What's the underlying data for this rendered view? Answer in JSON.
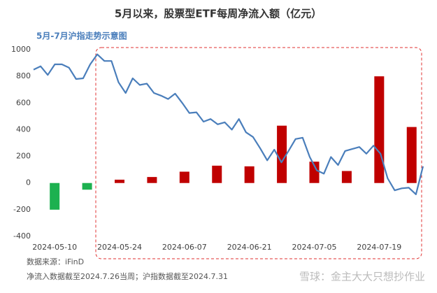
{
  "chart_data": {
    "type": "bar",
    "title": "5月以来，股票型ETF每周净流入额（亿元）",
    "subtitle": "5月-7月沪指走势示意图",
    "categories": [
      "2024-05-10",
      null,
      "2024-05-24",
      null,
      "2024-06-07",
      null,
      "2024-06-21",
      null,
      "2024-07-05",
      null,
      "2024-07-19",
      null
    ],
    "values": [
      -200,
      -50,
      25,
      45,
      85,
      130,
      125,
      430,
      160,
      90,
      800,
      420
    ],
    "colors": [
      "#1db150",
      "#1db150",
      "#c00000",
      "#c00000",
      "#c00000",
      "#c00000",
      "#c00000",
      "#c00000",
      "#c00000",
      "#c00000",
      "#c00000",
      "#c00000"
    ],
    "line": {
      "color": "#4a7ebb",
      "values": [
        850,
        875,
        810,
        890,
        890,
        865,
        780,
        785,
        890,
        965,
        915,
        915,
        755,
        675,
        785,
        735,
        745,
        675,
        655,
        630,
        670,
        600,
        525,
        530,
        460,
        480,
        440,
        455,
        400,
        480,
        380,
        345,
        260,
        170,
        250,
        155,
        240,
        330,
        340,
        195,
        95,
        70,
        195,
        135,
        240,
        255,
        270,
        220,
        280,
        220,
        35,
        -55,
        -40,
        -35,
        -85,
        125
      ]
    },
    "ylim": [
      -400,
      1000
    ],
    "yticks": [
      -400,
      -200,
      0,
      200,
      400,
      600,
      800,
      1000
    ],
    "notes": [
      "数据来源：iFinD",
      "净流入数据截至2024.7.26当周；沪指数据截至2024.7.31"
    ],
    "watermark": "雪球：金主大大只想抄作业"
  }
}
